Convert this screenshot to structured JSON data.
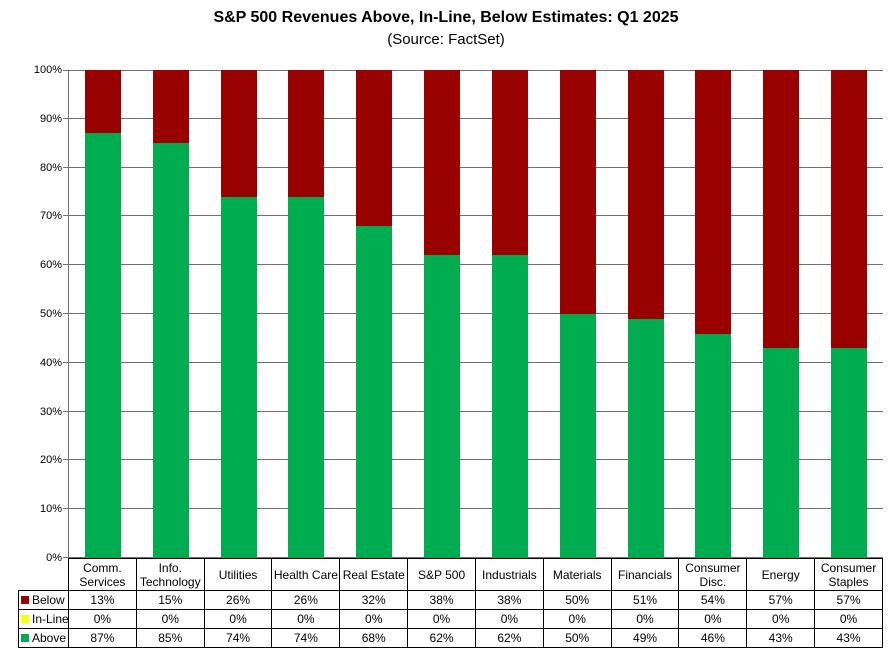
{
  "title": "S&P 500 Revenues Above, In-Line, Below Estimates: Q1 2025",
  "subtitle": "(Source: FactSet)",
  "chart_data": {
    "type": "bar",
    "stacked": true,
    "title": "S&P 500 Revenues Above, In-Line, Below Estimates: Q1 2025",
    "subtitle": "(Source: FactSet)",
    "categories": [
      "Comm. Services",
      "Info. Technology",
      "Utilities",
      "Health Care",
      "Real Estate",
      "S&P 500",
      "Industrials",
      "Materials",
      "Financials",
      "Consumer Disc.",
      "Energy",
      "Consumer Staples"
    ],
    "series": [
      {
        "name": "Below",
        "color": "#990000",
        "values": [
          13,
          15,
          26,
          26,
          32,
          38,
          38,
          50,
          51,
          54,
          57,
          57
        ]
      },
      {
        "name": "In-Line",
        "color": "#FFFF00",
        "values": [
          0,
          0,
          0,
          0,
          0,
          0,
          0,
          0,
          0,
          0,
          0,
          0
        ]
      },
      {
        "name": "Above",
        "color": "#00AC50",
        "values": [
          87,
          85,
          74,
          74,
          68,
          62,
          62,
          50,
          49,
          46,
          43,
          43
        ]
      }
    ],
    "ylim": [
      0,
      100
    ],
    "ytick_step": 10,
    "ytick_suffix": "%",
    "grid": true,
    "gridline_color": "#707070",
    "legend_position": "table-left",
    "value_suffix": "%"
  }
}
